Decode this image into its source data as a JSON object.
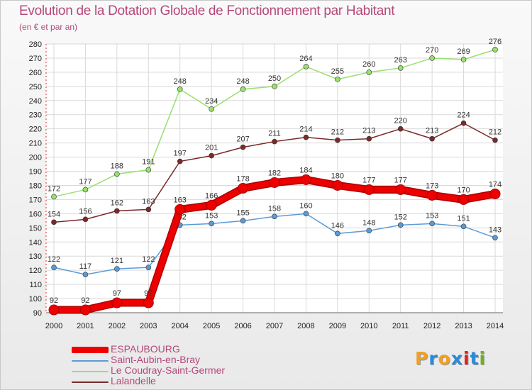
{
  "title": "Evolution de la Dotation Globale de Fonctionnement par Habitant",
  "subtitle": "(en € et par an)",
  "logo": {
    "letters": [
      "P",
      "r",
      "o",
      "x",
      "i",
      "t",
      "i"
    ],
    "colors": [
      "#f0a020",
      "#2a8ad8",
      "#f0a020",
      "#2a8ad8",
      "#e02020",
      "#2a8ad8",
      "#70b020"
    ]
  },
  "chart_data": {
    "type": "line",
    "title": "Evolution de la Dotation Globale de Fonctionnement par Habitant",
    "ylabel": "(en € et par an)",
    "xlabel": "",
    "x": [
      "2000",
      "2001",
      "2002",
      "2003",
      "2004",
      "2005",
      "2006",
      "2007",
      "2008",
      "2009",
      "2010",
      "2011",
      "2012",
      "2013",
      "2014"
    ],
    "ylim": [
      90,
      280
    ],
    "yticks": [
      90,
      100,
      110,
      120,
      130,
      140,
      150,
      160,
      170,
      180,
      190,
      200,
      210,
      220,
      230,
      240,
      250,
      260,
      270,
      280
    ],
    "grid": true,
    "legend_position": "bottom-left",
    "series": [
      {
        "name": "ESPAUBOURG",
        "color": "#ee0000",
        "emphasis": true,
        "values": [
          92,
          92,
          97,
          97,
          163,
          166,
          178,
          182,
          184,
          180,
          177,
          177,
          173,
          170,
          174
        ],
        "labels": [
          "92",
          "92",
          "97",
          "97",
          "163",
          "166",
          "178",
          "182",
          "184",
          "180",
          "177",
          "177",
          "173",
          "170",
          "174"
        ]
      },
      {
        "name": "Saint-Aubin-en-Bray",
        "color": "#5b9bd5",
        "emphasis": false,
        "values": [
          122,
          117,
          121,
          122,
          152,
          153,
          155,
          158,
          160,
          146,
          148,
          152,
          153,
          151,
          143
        ],
        "labels": [
          "122",
          "117",
          "121",
          "122",
          "152",
          "153",
          "155",
          "158",
          "160",
          "146",
          "148",
          "152",
          "153",
          "151",
          "143"
        ]
      },
      {
        "name": "Le Coudray-Saint-Germer",
        "color": "#99e06e",
        "emphasis": false,
        "values": [
          172,
          177,
          188,
          191,
          248,
          234,
          248,
          250,
          264,
          255,
          260,
          263,
          270,
          269,
          276
        ],
        "labels": [
          "172",
          "177",
          "188",
          "191",
          "248",
          "234",
          "248",
          "250",
          "264",
          "255",
          "260",
          "263",
          "270",
          "269",
          "276"
        ]
      },
      {
        "name": "Lalandelle",
        "color": "#7a2a2a",
        "emphasis": false,
        "values": [
          154,
          156,
          162,
          163,
          197,
          201,
          207,
          211,
          214,
          212,
          213,
          220,
          213,
          224,
          212
        ],
        "labels": [
          "154",
          "156",
          "162",
          "163",
          "197",
          "201",
          "207",
          "211",
          "214",
          "212",
          "213",
          "220",
          "213",
          "224",
          "212"
        ]
      }
    ]
  }
}
